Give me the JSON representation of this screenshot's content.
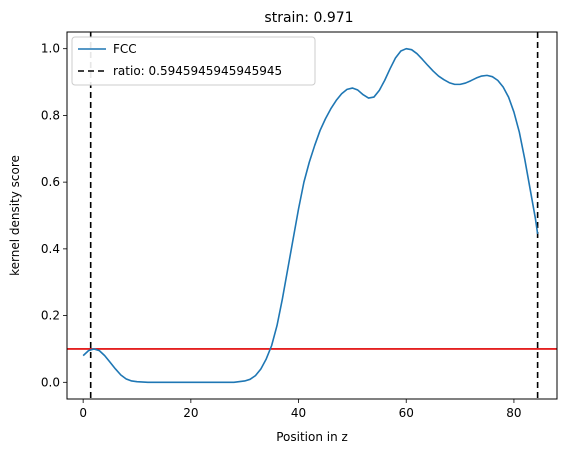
{
  "chart_data": {
    "type": "line",
    "title": "strain: 0.971",
    "xlabel": "Position in z",
    "ylabel": "kernel density score",
    "xlim": [
      -3,
      88
    ],
    "ylim": [
      -0.05,
      1.05
    ],
    "xticks": [
      0,
      20,
      40,
      60,
      80
    ],
    "yticks": [
      0.0,
      0.2,
      0.4,
      0.6,
      0.8,
      1.0
    ],
    "xtick_labels": [
      "0",
      "20",
      "40",
      "60",
      "80"
    ],
    "ytick_labels": [
      "0.0",
      "0.2",
      "0.4",
      "0.6",
      "0.8",
      "1.0"
    ],
    "grid": false,
    "legend_position": "top-left",
    "series": [
      {
        "name": "FCC",
        "color": "#1f77b4",
        "style": "solid",
        "x": [
          0,
          1,
          2,
          3,
          4,
          5,
          6,
          7,
          8,
          9,
          10,
          12,
          15,
          20,
          25,
          28,
          30,
          31,
          32,
          33,
          34,
          35,
          36,
          37,
          38,
          39,
          40,
          41,
          42,
          43,
          44,
          45,
          46,
          47,
          48,
          49,
          50,
          51,
          52,
          53,
          54,
          55,
          56,
          57,
          58,
          59,
          60,
          61,
          62,
          63,
          64,
          65,
          66,
          67,
          68,
          69,
          70,
          71,
          72,
          73,
          74,
          75,
          76,
          77,
          78,
          79,
          80,
          81,
          82,
          83,
          84,
          84.4
        ],
        "y": [
          0.08,
          0.095,
          0.1,
          0.095,
          0.08,
          0.06,
          0.04,
          0.022,
          0.01,
          0.004,
          0.002,
          0.0,
          0.0,
          0.0,
          0.0,
          0.0,
          0.004,
          0.009,
          0.02,
          0.04,
          0.07,
          0.11,
          0.17,
          0.25,
          0.34,
          0.43,
          0.52,
          0.6,
          0.66,
          0.71,
          0.755,
          0.79,
          0.82,
          0.845,
          0.865,
          0.878,
          0.882,
          0.876,
          0.862,
          0.852,
          0.855,
          0.875,
          0.905,
          0.94,
          0.972,
          0.993,
          1.0,
          0.997,
          0.985,
          0.968,
          0.95,
          0.933,
          0.918,
          0.907,
          0.898,
          0.893,
          0.893,
          0.897,
          0.904,
          0.912,
          0.918,
          0.92,
          0.916,
          0.905,
          0.885,
          0.855,
          0.81,
          0.75,
          0.67,
          0.58,
          0.49,
          0.445
        ]
      },
      {
        "name": "ratio: 0.5945945945945945",
        "color": "#000000",
        "style": "dashed",
        "vlines_x": [
          1.4,
          84.4
        ]
      }
    ],
    "hline": {
      "y": 0.1,
      "color": "#e00000"
    }
  }
}
